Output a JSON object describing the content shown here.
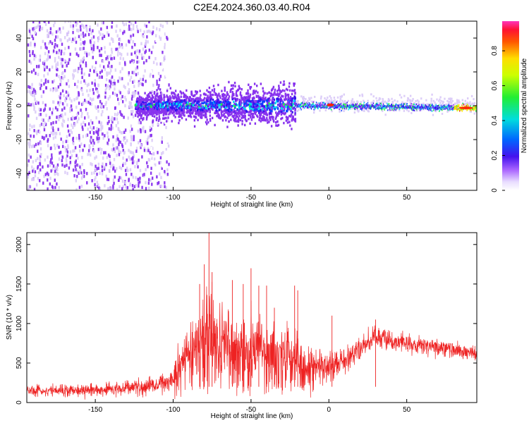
{
  "title": "C2E4.2024.360.03.40.R04",
  "colors": {
    "snr_line": "#ee2222",
    "colormap": [
      "#ffffff",
      "#dccdf8",
      "#8833ee",
      "#3311ee",
      "#1144ff",
      "#00ddee",
      "#22ee44",
      "#ccff00",
      "#ffee00",
      "#ffaa00",
      "#ff2200",
      "#ff22aa"
    ]
  },
  "chart_data": [
    {
      "type": "heatmap",
      "xlabel": "Height of straight line (km)",
      "ylabel": "Frequency (Hz)",
      "xlim": [
        -194,
        95
      ],
      "ylim": [
        -50,
        50
      ],
      "xticks": [
        -150,
        -100,
        -50,
        0,
        50
      ],
      "yticks": [
        -40,
        -20,
        0,
        20,
        40
      ],
      "colorbar": {
        "label": "Normalized spectral amplitude",
        "range": [
          0,
          0.97
        ],
        "ticks": [
          0,
          0.2,
          0.4,
          0.6,
          0.8
        ]
      },
      "description_regions": [
        {
          "x_range": [
            -194,
            -103
          ],
          "pattern": "scattered noise across all frequencies",
          "amplitude": 0.15
        },
        {
          "x_range": [
            -125,
            -22
          ],
          "pattern": "band centered near 0 Hz, width about 10 Hz",
          "amplitude": 0.35
        },
        {
          "x_range": [
            -22,
            95
          ],
          "pattern": "narrow line near 0 Hz, sloping slightly down",
          "amplitude": 0.65
        }
      ]
    },
    {
      "type": "line",
      "xlabel": "Height of straight line (km)",
      "ylabel": "SNR (10 * v/v)",
      "xlim": [
        -194,
        95
      ],
      "ylim": [
        0,
        2150
      ],
      "xticks": [
        -150,
        -100,
        -50,
        0,
        50
      ],
      "yticks": [
        0,
        500,
        1000,
        1500,
        2000
      ],
      "series": [
        {
          "envelope_x": [
            -194,
            -150,
            -110,
            -100,
            -95,
            -85,
            -78,
            -70,
            -60,
            -50,
            -40,
            -30,
            -20,
            -10,
            0,
            10,
            20,
            30,
            40,
            60,
            80,
            95
          ],
          "envelope_mean": [
            150,
            160,
            220,
            300,
            560,
            750,
            900,
            750,
            720,
            700,
            640,
            620,
            520,
            450,
            460,
            520,
            680,
            830,
            790,
            720,
            660,
            620
          ],
          "envelope_noise": [
            70,
            80,
            110,
            150,
            300,
            420,
            560,
            460,
            420,
            420,
            380,
            380,
            300,
            250,
            210,
            180,
            150,
            130,
            120,
            110,
            110,
            100
          ],
          "peaks": [
            {
              "x": -77,
              "y": 2150
            },
            {
              "x": -80,
              "y": 1750
            },
            {
              "x": -83,
              "y": 1500
            },
            {
              "x": -75,
              "y": 1650
            },
            {
              "x": -62,
              "y": 1550
            },
            {
              "x": -55,
              "y": 1500
            },
            {
              "x": -50,
              "y": 1700
            },
            {
              "x": -45,
              "y": 1480
            },
            {
              "x": -40,
              "y": 1480
            },
            {
              "x": -35,
              "y": 1200
            },
            {
              "x": -22,
              "y": 1480
            },
            {
              "x": -20,
              "y": 1420
            },
            {
              "x": 2,
              "y": 1100
            },
            {
              "x": 30,
              "y": 1050
            }
          ]
        }
      ]
    }
  ]
}
